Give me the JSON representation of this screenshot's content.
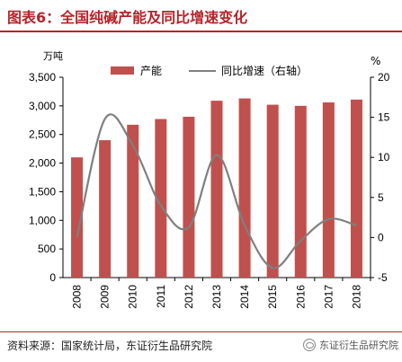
{
  "title": "图表6：全国纯碱产能及同比增速变化",
  "source": "资料来源：国家统计局，东证衍生品研究院",
  "watermark": "东证衍生品研究院",
  "colors": {
    "accent": "#b5242a",
    "bar": "#c0504d",
    "line": "#7f7f7f"
  },
  "chart_data": {
    "type": "bar",
    "categories": [
      "2008",
      "2009",
      "2010",
      "2011",
      "2012",
      "2013",
      "2014",
      "2015",
      "2016",
      "2017",
      "2018"
    ],
    "series": [
      {
        "name": "产能",
        "type": "bar",
        "axis": "left",
        "values": [
          2100,
          2400,
          2670,
          2770,
          2810,
          3090,
          3130,
          3020,
          3000,
          3060,
          3110
        ]
      },
      {
        "name": "同比增速（右轴）",
        "type": "line",
        "axis": "right",
        "values": [
          0,
          14.8,
          11.5,
          4.0,
          1.3,
          10.3,
          1.5,
          -3.8,
          -0.4,
          2.3,
          1.5
        ]
      }
    ],
    "ylabel_left": "万吨",
    "ylabel_right": "%",
    "ylim_left": [
      0,
      3500
    ],
    "yticks_left": [
      "0",
      "500",
      "1,000",
      "1,500",
      "2,000",
      "2,500",
      "3,000",
      "3,500"
    ],
    "ylim_right": [
      -5,
      20
    ],
    "yticks_right": [
      "-5",
      "0",
      "5",
      "10",
      "15",
      "20"
    ],
    "legend": "top",
    "grid": false
  }
}
